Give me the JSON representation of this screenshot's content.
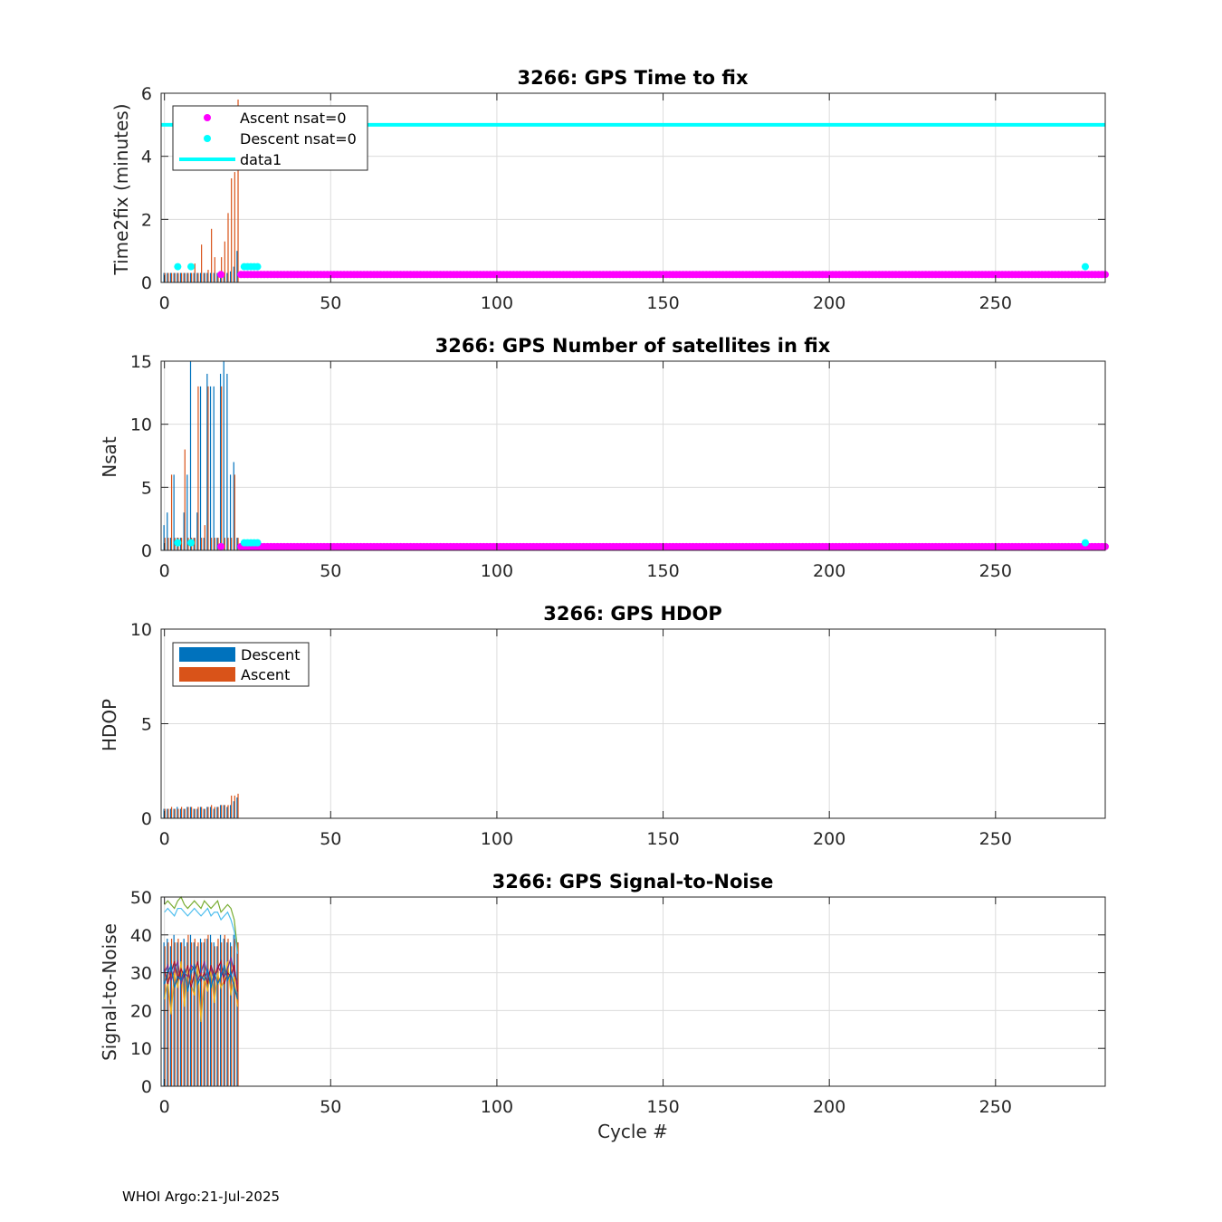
{
  "footer": "WHOI Argo:21-Jul-2025",
  "colors": {
    "descent": "#0072BD",
    "ascent": "#D95319",
    "magenta": "#FF00FF",
    "cyan": "#00FFFF",
    "axis": "#262626",
    "grid": "#DCDCDC"
  },
  "chart_data": [
    {
      "type": "bar",
      "title": "3266: GPS Time to fix",
      "xlabel": "",
      "ylabel": "Time2fix (minutes)",
      "xlim": [
        -1,
        283
      ],
      "ylim": [
        0,
        6
      ],
      "xticks": [
        0,
        50,
        100,
        150,
        200,
        250
      ],
      "yticks": [
        0,
        2,
        4,
        6
      ],
      "grid": true,
      "legend": {
        "position": "top-left",
        "entries": [
          "Ascent nsat=0",
          "Descent nsat=0",
          "data1"
        ]
      },
      "hline": {
        "name": "data1",
        "y": 5
      },
      "series": [
        {
          "name": "Descent",
          "kind": "bar",
          "x": [
            0,
            1,
            2,
            3,
            4,
            5,
            6,
            7,
            8,
            9,
            10,
            11,
            12,
            13,
            14,
            15,
            16,
            17,
            18,
            19,
            20,
            21,
            22
          ],
          "values": [
            0.3,
            0.3,
            0.3,
            0.3,
            0.3,
            0.3,
            0.3,
            0.3,
            0.3,
            0.3,
            0.3,
            0.3,
            0.3,
            0.3,
            0.3,
            0.3,
            0.3,
            0.3,
            0.3,
            0.3,
            0.35,
            0.5,
            1.0
          ]
        },
        {
          "name": "Ascent",
          "kind": "bar",
          "x": [
            0,
            1,
            2,
            3,
            4,
            5,
            6,
            7,
            8,
            9,
            10,
            11,
            12,
            13,
            14,
            15,
            16,
            17,
            18,
            19,
            20,
            21,
            22
          ],
          "values": [
            0.3,
            0.3,
            0.3,
            0.3,
            0.3,
            0.3,
            0.3,
            0.3,
            0.3,
            0.6,
            0.3,
            1.2,
            0.3,
            0.4,
            1.7,
            0.8,
            0.3,
            0.8,
            1.3,
            2.2,
            3.3,
            3.5,
            5.8
          ]
        },
        {
          "name": "Ascent nsat=0",
          "kind": "points",
          "y": 0.25,
          "x": [
            17
          ],
          "range": [
            23,
            283
          ]
        },
        {
          "name": "Descent nsat=0",
          "kind": "points",
          "y": 0.5,
          "x": [
            4,
            8,
            24,
            25,
            26,
            27,
            28,
            277
          ]
        }
      ]
    },
    {
      "type": "bar",
      "title": "3266: GPS Number of satellites in fix",
      "xlabel": "",
      "ylabel": "Nsat",
      "xlim": [
        -1,
        283
      ],
      "ylim": [
        0,
        15
      ],
      "xticks": [
        0,
        50,
        100,
        150,
        200,
        250
      ],
      "yticks": [
        0,
        5,
        10,
        15
      ],
      "grid": true,
      "series": [
        {
          "name": "Descent",
          "kind": "bar",
          "x": [
            0,
            1,
            2,
            3,
            4,
            5,
            6,
            7,
            8,
            9,
            10,
            11,
            12,
            13,
            14,
            15,
            16,
            17,
            18,
            19,
            20,
            21,
            22
          ],
          "values": [
            2,
            3,
            1,
            6,
            1,
            1,
            3,
            6,
            15,
            1,
            3,
            13,
            1,
            14,
            13,
            13,
            1,
            14,
            15,
            14,
            6,
            7,
            1
          ]
        },
        {
          "name": "Ascent",
          "kind": "bar",
          "x": [
            0,
            1,
            2,
            3,
            4,
            5,
            6,
            7,
            8,
            9,
            10,
            11,
            12,
            13,
            14,
            15,
            16,
            17,
            18,
            19,
            20,
            21,
            22
          ],
          "values": [
            1,
            1,
            6,
            1,
            1,
            1,
            8,
            1,
            1,
            1,
            13,
            1,
            2,
            13,
            1,
            1,
            1,
            13,
            1,
            1,
            1,
            6,
            1
          ]
        },
        {
          "name": "Ascent nsat=0",
          "kind": "points",
          "y": 0.3,
          "x": [
            17
          ],
          "range": [
            23,
            283
          ]
        },
        {
          "name": "Descent nsat=0",
          "kind": "points",
          "y": 0.6,
          "x": [
            4,
            8,
            24,
            25,
            26,
            27,
            28,
            277
          ]
        }
      ]
    },
    {
      "type": "bar",
      "title": "3266: GPS HDOP",
      "xlabel": "",
      "ylabel": "HDOP",
      "xlim": [
        -1,
        283
      ],
      "ylim": [
        0,
        10
      ],
      "xticks": [
        0,
        50,
        100,
        150,
        200,
        250
      ],
      "yticks": [
        0,
        5,
        10
      ],
      "grid": true,
      "legend": {
        "position": "top-left",
        "entries": [
          "Descent",
          "Ascent"
        ]
      },
      "series": [
        {
          "name": "Descent",
          "kind": "bar",
          "x": [
            0,
            1,
            2,
            3,
            4,
            5,
            6,
            7,
            8,
            9,
            10,
            11,
            12,
            13,
            14,
            15,
            16,
            17,
            18,
            19,
            20,
            21,
            22
          ],
          "values": [
            0.5,
            0.5,
            0.5,
            0.5,
            0.6,
            0.5,
            0.5,
            0.6,
            0.6,
            0.5,
            0.5,
            0.6,
            0.5,
            0.6,
            0.6,
            0.5,
            0.6,
            0.7,
            0.7,
            0.6,
            0.7,
            0.9,
            1.1
          ]
        },
        {
          "name": "Ascent",
          "kind": "bar",
          "x": [
            0,
            1,
            2,
            3,
            4,
            5,
            6,
            7,
            8,
            9,
            10,
            11,
            12,
            13,
            14,
            15,
            16,
            17,
            18,
            19,
            20,
            21,
            22
          ],
          "values": [
            0.5,
            0.5,
            0.6,
            0.5,
            0.5,
            0.6,
            0.5,
            0.6,
            0.6,
            0.5,
            0.6,
            0.6,
            0.5,
            0.6,
            0.7,
            0.6,
            0.6,
            0.7,
            0.7,
            0.7,
            1.2,
            1.2,
            1.3
          ]
        }
      ]
    },
    {
      "type": "line",
      "title": "3266: GPS Signal-to-Noise",
      "xlabel": "Cycle #",
      "ylabel": "Signal-to-Noise",
      "xlim": [
        -1,
        283
      ],
      "ylim": [
        0,
        50
      ],
      "xticks": [
        0,
        50,
        100,
        150,
        200,
        250
      ],
      "yticks": [
        0,
        10,
        20,
        30,
        40,
        50
      ],
      "grid": true,
      "bars": {
        "x": [
          0,
          1,
          2,
          3,
          4,
          5,
          6,
          7,
          8,
          9,
          10,
          11,
          12,
          13,
          14,
          15,
          16,
          17,
          18,
          19,
          20,
          21,
          22
        ],
        "descent": [
          38,
          39,
          37,
          40,
          38,
          38,
          39,
          38,
          40,
          38,
          37,
          39,
          38,
          39,
          40,
          38,
          37,
          40,
          39,
          38,
          38,
          40,
          38
        ],
        "ascent": [
          37,
          38,
          39,
          38,
          39,
          38,
          37,
          40,
          38,
          39,
          38,
          38,
          39,
          40,
          38,
          37,
          39,
          38,
          40,
          39,
          37,
          39,
          38
        ]
      },
      "series": [
        {
          "color": "#77AC30",
          "values": [
            48,
            49,
            48,
            47,
            49,
            50,
            48,
            47,
            48,
            49,
            48,
            47,
            49,
            48,
            47,
            48,
            49,
            46,
            47,
            48,
            47,
            44,
            36
          ]
        },
        {
          "color": "#4DBEEE",
          "values": [
            46,
            47,
            46,
            45,
            47,
            47,
            46,
            45,
            46,
            47,
            46,
            45,
            46,
            47,
            45,
            46,
            46,
            44,
            45,
            46,
            44,
            41,
            35
          ]
        },
        {
          "color": "#EDB120",
          "values": [
            23,
            28,
            19,
            30,
            26,
            33,
            21,
            31,
            27,
            24,
            32,
            17,
            29,
            25,
            31,
            22,
            30,
            26,
            28,
            33,
            24,
            29,
            21
          ]
        },
        {
          "color": "#7E2F8E",
          "values": [
            30,
            32,
            28,
            31,
            33,
            27,
            30,
            29,
            32,
            31,
            28,
            30,
            33,
            29,
            31,
            28,
            32,
            30,
            29,
            31,
            34,
            30,
            27
          ]
        },
        {
          "color": "#A2142F",
          "values": [
            31,
            27,
            30,
            33,
            28,
            31,
            29,
            32,
            26,
            30,
            33,
            28,
            30,
            27,
            32,
            29,
            31,
            33,
            27,
            30,
            29,
            32,
            25
          ]
        },
        {
          "color": "#0072BD",
          "values": [
            27,
            30,
            32,
            26,
            29,
            28,
            31,
            25,
            30,
            32,
            27,
            29,
            28,
            31,
            26,
            30,
            27,
            29,
            32,
            28,
            30,
            26,
            23
          ]
        }
      ]
    }
  ]
}
